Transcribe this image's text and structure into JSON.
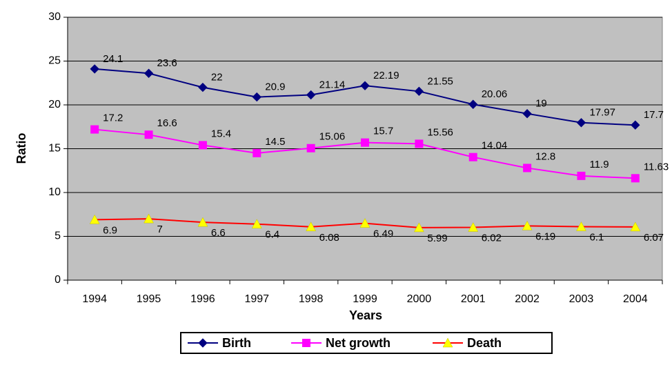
{
  "chart_data": {
    "type": "line",
    "xlabel": "Years",
    "ylabel": "Ratio",
    "categories": [
      "1994",
      "1995",
      "1996",
      "1997",
      "1998",
      "1999",
      "2000",
      "2001",
      "2002",
      "2003",
      "2004"
    ],
    "series": [
      {
        "name": "Birth",
        "color": "#000080",
        "marker": "diamond",
        "marker_color": "#000080",
        "values": [
          24.1,
          23.6,
          22,
          20.9,
          21.14,
          22.19,
          21.55,
          20.06,
          19,
          17.97,
          17.7
        ]
      },
      {
        "name": "Net growth",
        "color": "#FF00FF",
        "marker": "square",
        "marker_color": "#FF00FF",
        "values": [
          17.2,
          16.6,
          15.4,
          14.5,
          15.06,
          15.7,
          15.56,
          14.04,
          12.8,
          11.9,
          11.63
        ]
      },
      {
        "name": "Death",
        "color": "#FF0000",
        "marker": "triangle",
        "marker_color": "#FFFF00",
        "values": [
          6.9,
          7,
          6.6,
          6.4,
          6.08,
          6.49,
          5.99,
          6.02,
          6.19,
          6.1,
          6.07
        ]
      }
    ],
    "ylim": [
      0,
      30
    ],
    "yticks": [
      0,
      5,
      10,
      15,
      20,
      25,
      30
    ],
    "grid": true,
    "plot_background": "#C0C0C0",
    "legend": "bottom"
  }
}
